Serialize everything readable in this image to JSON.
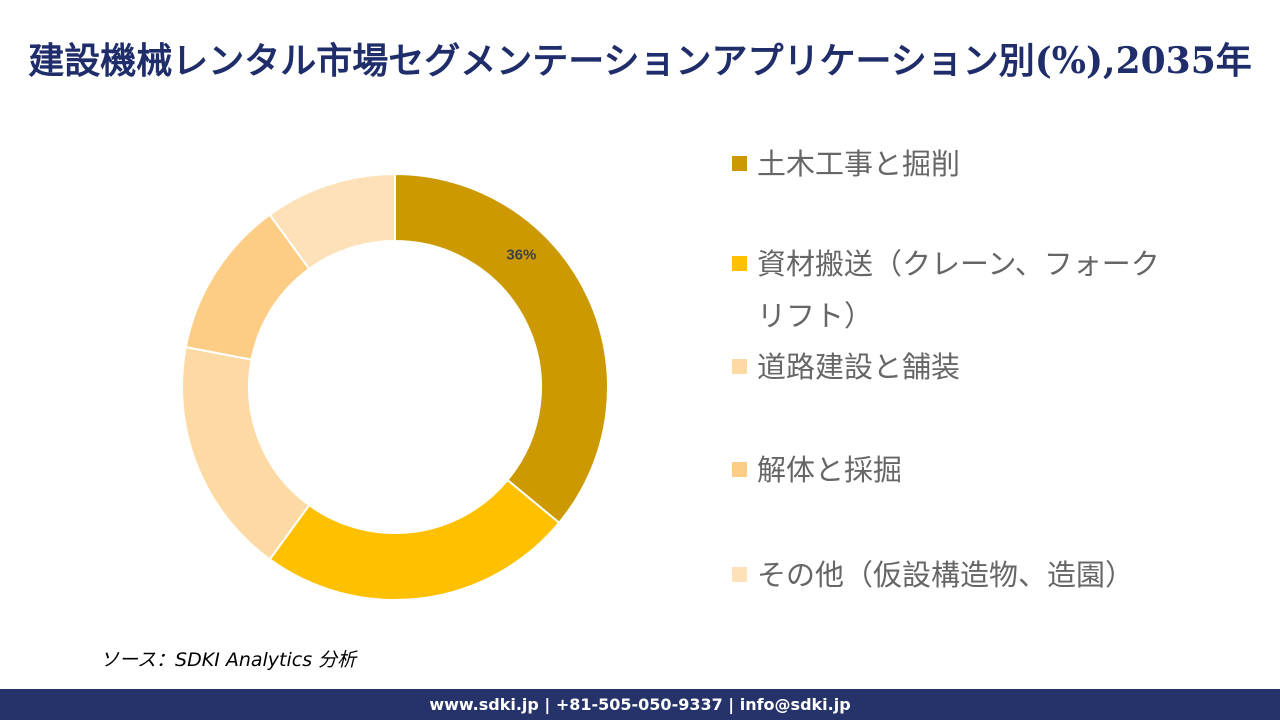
{
  "title": "建設機械レンタル市場セグメンテーションアプリケーション別(%),2035年",
  "chart_data": {
    "type": "donut",
    "title": "建設機械レンタル市場セグメンテーションアプリケーション別(%),2035年",
    "categories": [
      "土木工事と掘削",
      "資材搬送（クレーン、フォークリフト）",
      "道路建設と舗装",
      "解体と採掘",
      "その他（仮設構造物、造園）"
    ],
    "values": [
      36,
      24,
      18,
      12,
      10
    ],
    "colors": [
      "#CC9A00",
      "#FFC000",
      "#FDD9A4",
      "#FDCD86",
      "#FEE1B8"
    ],
    "data_labels": [
      "36%",
      "",
      "",
      "",
      ""
    ],
    "legend_position": "right"
  },
  "source": "ソース：SDKI Analytics 分析",
  "footer": "www.sdki.jp | +81-505-050-9337 | info@sdki.jp"
}
